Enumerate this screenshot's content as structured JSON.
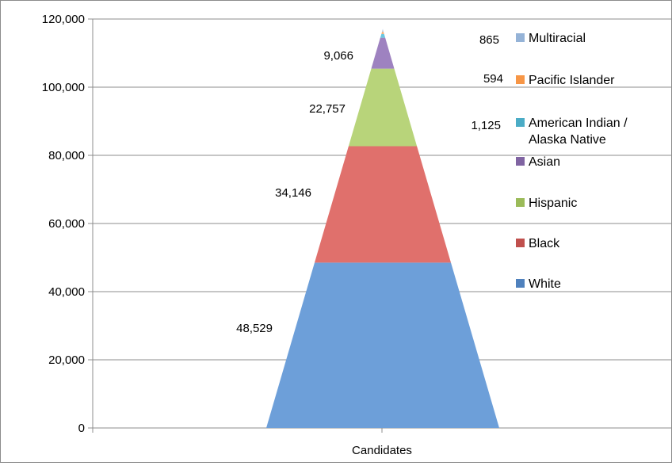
{
  "chart_data": {
    "type": "stacked-pyramid",
    "categories": [
      "Candidates"
    ],
    "series": [
      {
        "name": "White",
        "value": 48529,
        "label": "48,529",
        "color": "#4f81bd",
        "fill": "#6d9fd9"
      },
      {
        "name": "Black",
        "value": 34146,
        "label": "34,146",
        "color": "#c0504d",
        "fill": "#e0706c"
      },
      {
        "name": "Hispanic",
        "value": 22757,
        "label": "22,757",
        "color": "#9bbb59",
        "fill": "#b8d47a"
      },
      {
        "name": "Asian",
        "value": 9066,
        "label": "9,066",
        "color": "#8064a2",
        "fill": "#9e82c0"
      },
      {
        "name": "American Indian / Alaska Native",
        "legend_lines": [
          "American Indian /",
          "Alaska Native"
        ],
        "value": 1125,
        "label": "1,125",
        "color": "#4bacc6",
        "fill": "#6cc6df"
      },
      {
        "name": "Pacific Islander",
        "value": 594,
        "label": "594",
        "color": "#f79646",
        "fill": "#f9ae6e"
      },
      {
        "name": "Multiracial",
        "value": 865,
        "label": "865",
        "color": "#95b3d7",
        "fill": "#a9c4e3"
      }
    ],
    "yticks": [
      "0",
      "20,000",
      "40,000",
      "60,000",
      "80,000",
      "100,000",
      "120,000"
    ],
    "ylim": [
      0,
      120000
    ],
    "grid": true,
    "legend_position": "right"
  }
}
